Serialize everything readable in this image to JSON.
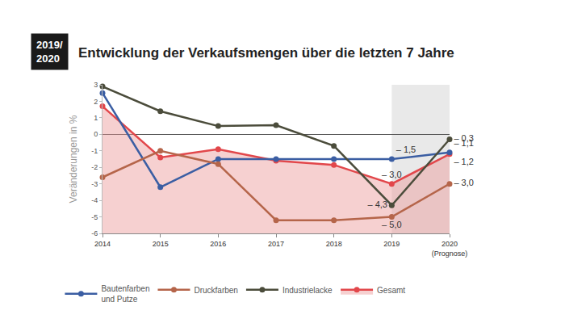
{
  "chart_data": {
    "type": "line",
    "title": "Entwicklung der Verkaufsmengen über die letzten 7 Jahre",
    "badge": "2019/\n2020",
    "y_label": "Veränderungen in %",
    "categories": [
      "2014",
      "2015",
      "2016",
      "2017",
      "2018",
      "2019",
      "2020\n(Prognose)"
    ],
    "ylim": [
      -6,
      3
    ],
    "yticks": [
      -6,
      -5,
      -4,
      -3,
      -2,
      -1,
      0,
      1,
      2,
      3
    ],
    "grid": false,
    "legend": "bottom",
    "series": [
      {
        "name": "Bautenfarben\nund Putze",
        "color": "#3b5ea3",
        "marker": "circle",
        "line_style": "solid",
        "values": [
          2.5,
          -3.2,
          -1.5,
          -1.5,
          -1.5,
          -1.5,
          -1.1
        ],
        "value_labels": [
          null,
          null,
          null,
          null,
          null,
          "– 1,5",
          "– 1,1"
        ]
      },
      {
        "name": "Druckfarben",
        "color": "#b5654a",
        "marker": "circle",
        "line_style": "solid",
        "values": [
          -2.6,
          -1.0,
          -1.8,
          -5.2,
          -5.2,
          -5.0,
          -3.0
        ],
        "value_labels": [
          null,
          null,
          null,
          null,
          null,
          "– 5,0",
          "– 3,0"
        ]
      },
      {
        "name": "Industrielacke",
        "color": "#4b4c3b",
        "marker": "circle",
        "line_style": "solid",
        "values": [
          2.9,
          1.4,
          0.5,
          0.55,
          -0.7,
          -4.3,
          -0.3
        ],
        "value_labels": [
          null,
          null,
          null,
          null,
          null,
          "– 4,3",
          "– 0,3"
        ]
      },
      {
        "name": "Gesamt",
        "color": "#e2474b",
        "marker": "circle",
        "line_style": "solid",
        "type": "area",
        "values": [
          1.7,
          -1.4,
          -0.9,
          -1.6,
          -1.85,
          -3.0,
          -1.2
        ],
        "value_labels": [
          null,
          null,
          null,
          null,
          null,
          "– 3,0",
          "– 1,2"
        ]
      }
    ]
  }
}
